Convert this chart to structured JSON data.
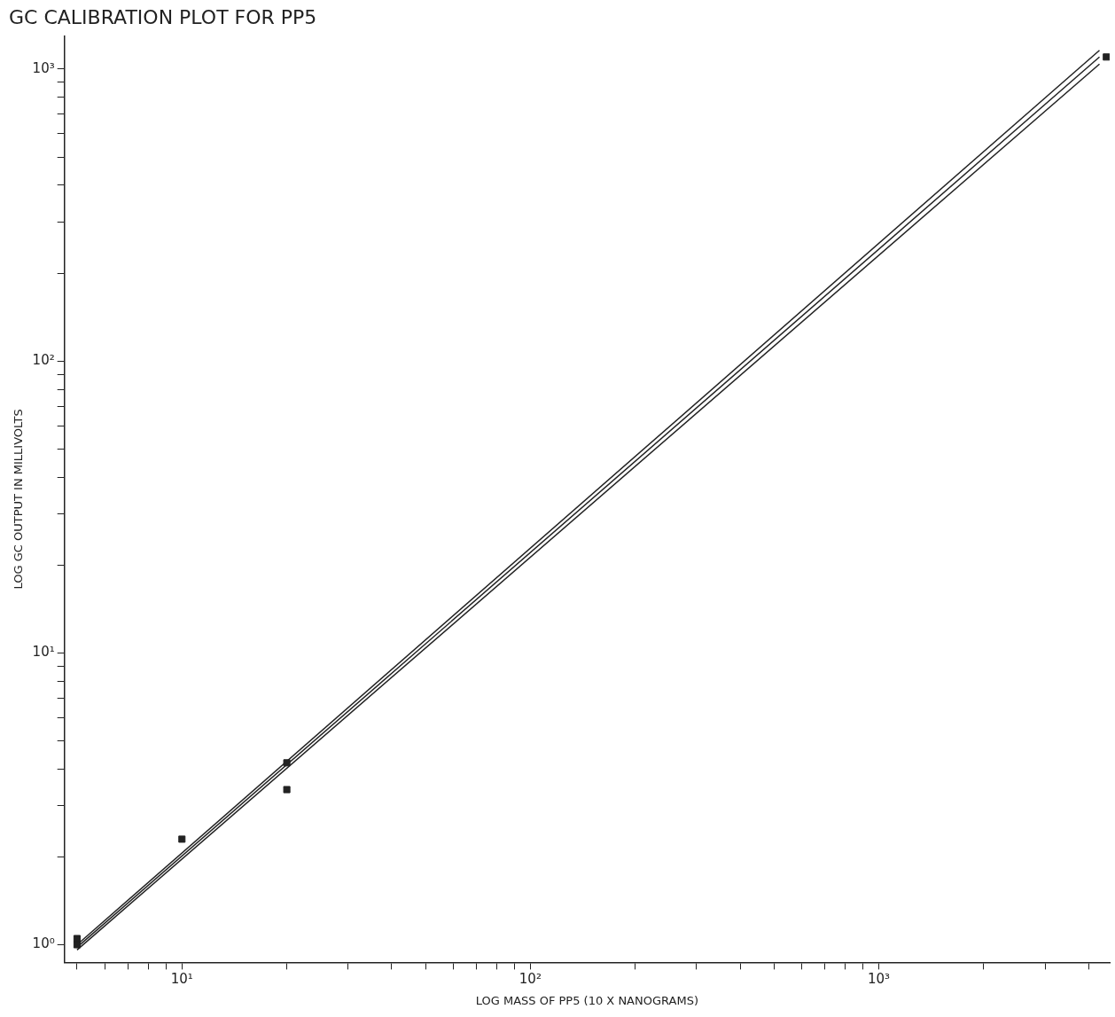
{
  "chart_data": {
    "type": "scatter",
    "title": "GC CALIBRATION PLOT FOR PP5",
    "xlabel": "LOG MASS OF PP5 (10 X NANOGRAMS)",
    "ylabel": "LOG GC OUTPUT IN MILLIVOLTS",
    "log": "xy",
    "grid": false,
    "legend": false,
    "marker": "square",
    "line_style": "solid",
    "xlim": [
      4.6,
      4600
    ],
    "ylim": [
      0.87,
      1300
    ],
    "xticks": [
      {
        "value": 5,
        "label": null
      },
      {
        "value": 6,
        "label": null
      },
      {
        "value": 7,
        "label": null
      },
      {
        "value": 8,
        "label": null
      },
      {
        "value": 9,
        "label": null
      },
      {
        "value": 10,
        "label": "10¹"
      },
      {
        "value": 20,
        "label": null
      },
      {
        "value": 30,
        "label": null
      },
      {
        "value": 40,
        "label": null
      },
      {
        "value": 50,
        "label": null
      },
      {
        "value": 60,
        "label": null
      },
      {
        "value": 70,
        "label": null
      },
      {
        "value": 80,
        "label": null
      },
      {
        "value": 90,
        "label": null
      },
      {
        "value": 100,
        "label": "10²"
      },
      {
        "value": 200,
        "label": null
      },
      {
        "value": 300,
        "label": null
      },
      {
        "value": 400,
        "label": null
      },
      {
        "value": 500,
        "label": null
      },
      {
        "value": 600,
        "label": null
      },
      {
        "value": 700,
        "label": null
      },
      {
        "value": 800,
        "label": null
      },
      {
        "value": 900,
        "label": null
      },
      {
        "value": 1000,
        "label": "10³"
      },
      {
        "value": 2000,
        "label": null
      },
      {
        "value": 3000,
        "label": null
      },
      {
        "value": 4000,
        "label": null
      }
    ],
    "yticks": [
      {
        "value": 1,
        "label": "10⁰"
      },
      {
        "value": 2,
        "label": null
      },
      {
        "value": 3,
        "label": null
      },
      {
        "value": 4,
        "label": null
      },
      {
        "value": 5,
        "label": null
      },
      {
        "value": 6,
        "label": null
      },
      {
        "value": 7,
        "label": null
      },
      {
        "value": 8,
        "label": null
      },
      {
        "value": 9,
        "label": null
      },
      {
        "value": 10,
        "label": "10¹"
      },
      {
        "value": 20,
        "label": null
      },
      {
        "value": 30,
        "label": null
      },
      {
        "value": 40,
        "label": null
      },
      {
        "value": 50,
        "label": null
      },
      {
        "value": 60,
        "label": null
      },
      {
        "value": 70,
        "label": null
      },
      {
        "value": 80,
        "label": null
      },
      {
        "value": 90,
        "label": null
      },
      {
        "value": 100,
        "label": "10²"
      },
      {
        "value": 200,
        "label": null
      },
      {
        "value": 300,
        "label": null
      },
      {
        "value": 400,
        "label": null
      },
      {
        "value": 500,
        "label": null
      },
      {
        "value": 600,
        "label": null
      },
      {
        "value": 700,
        "label": null
      },
      {
        "value": 800,
        "label": null
      },
      {
        "value": 900,
        "label": null
      },
      {
        "value": 1000,
        "label": "10³"
      }
    ],
    "series": [
      {
        "color": "#222222",
        "x": [
          5,
          5,
          10,
          20,
          20,
          4500
        ],
        "values": [
          1.0,
          1.05,
          2.3,
          4.2,
          3.4,
          1100
        ]
      },
      {
        "type": "line",
        "marker": "none",
        "color": "#222222",
        "x": [
          5,
          4300
        ],
        "values": [
          1.0,
          1160
        ]
      },
      {
        "type": "line",
        "marker": "none",
        "color": "#222222",
        "x": [
          5,
          4300
        ],
        "values": [
          0.98,
          1100
        ]
      },
      {
        "type": "line",
        "marker": "none",
        "color": "#222222",
        "x": [
          5,
          4300
        ],
        "values": [
          0.96,
          1040
        ]
      }
    ]
  }
}
